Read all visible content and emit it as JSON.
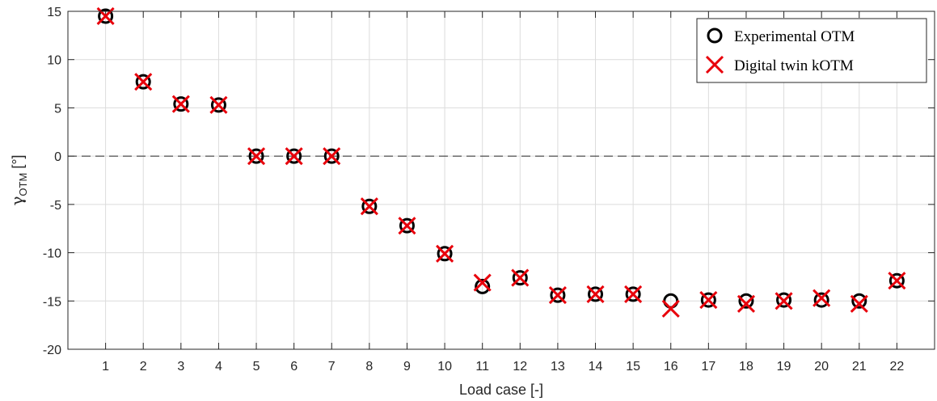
{
  "chart_data": {
    "type": "scatter",
    "xlabel": "Load case [-]",
    "ylabel_main": "γ",
    "ylabel_sub": "OTM",
    "ylabel_unit": " [°]",
    "x": [
      1,
      2,
      3,
      4,
      5,
      6,
      7,
      8,
      9,
      10,
      11,
      12,
      13,
      14,
      15,
      16,
      17,
      18,
      19,
      20,
      21,
      22
    ],
    "xlim": [
      0,
      23
    ],
    "ylim": [
      -20,
      15
    ],
    "yticks": [
      -20,
      -15,
      -10,
      -5,
      0,
      5,
      10,
      15
    ],
    "grid": true,
    "reference_line_y": 0,
    "legend_position": "top-right",
    "series": [
      {
        "name": "Experimental OTM",
        "marker": "circle",
        "color": "#000000",
        "values": [
          14.5,
          7.7,
          5.4,
          5.3,
          0.0,
          0.0,
          0.0,
          -5.2,
          -7.2,
          -10.1,
          -13.5,
          -12.6,
          -14.4,
          -14.3,
          -14.3,
          -15.0,
          -14.9,
          -15.0,
          -14.9,
          -14.9,
          -15.0,
          -12.9
        ]
      },
      {
        "name": "Digital twin kOTM",
        "marker": "x",
        "color": "#e8000b",
        "values": [
          14.5,
          7.7,
          5.4,
          5.3,
          0.0,
          0.0,
          0.0,
          -5.2,
          -7.2,
          -10.1,
          -13.1,
          -12.6,
          -14.4,
          -14.3,
          -14.3,
          -15.8,
          -14.9,
          -15.3,
          -15.0,
          -14.7,
          -15.3,
          -12.9
        ]
      }
    ]
  }
}
